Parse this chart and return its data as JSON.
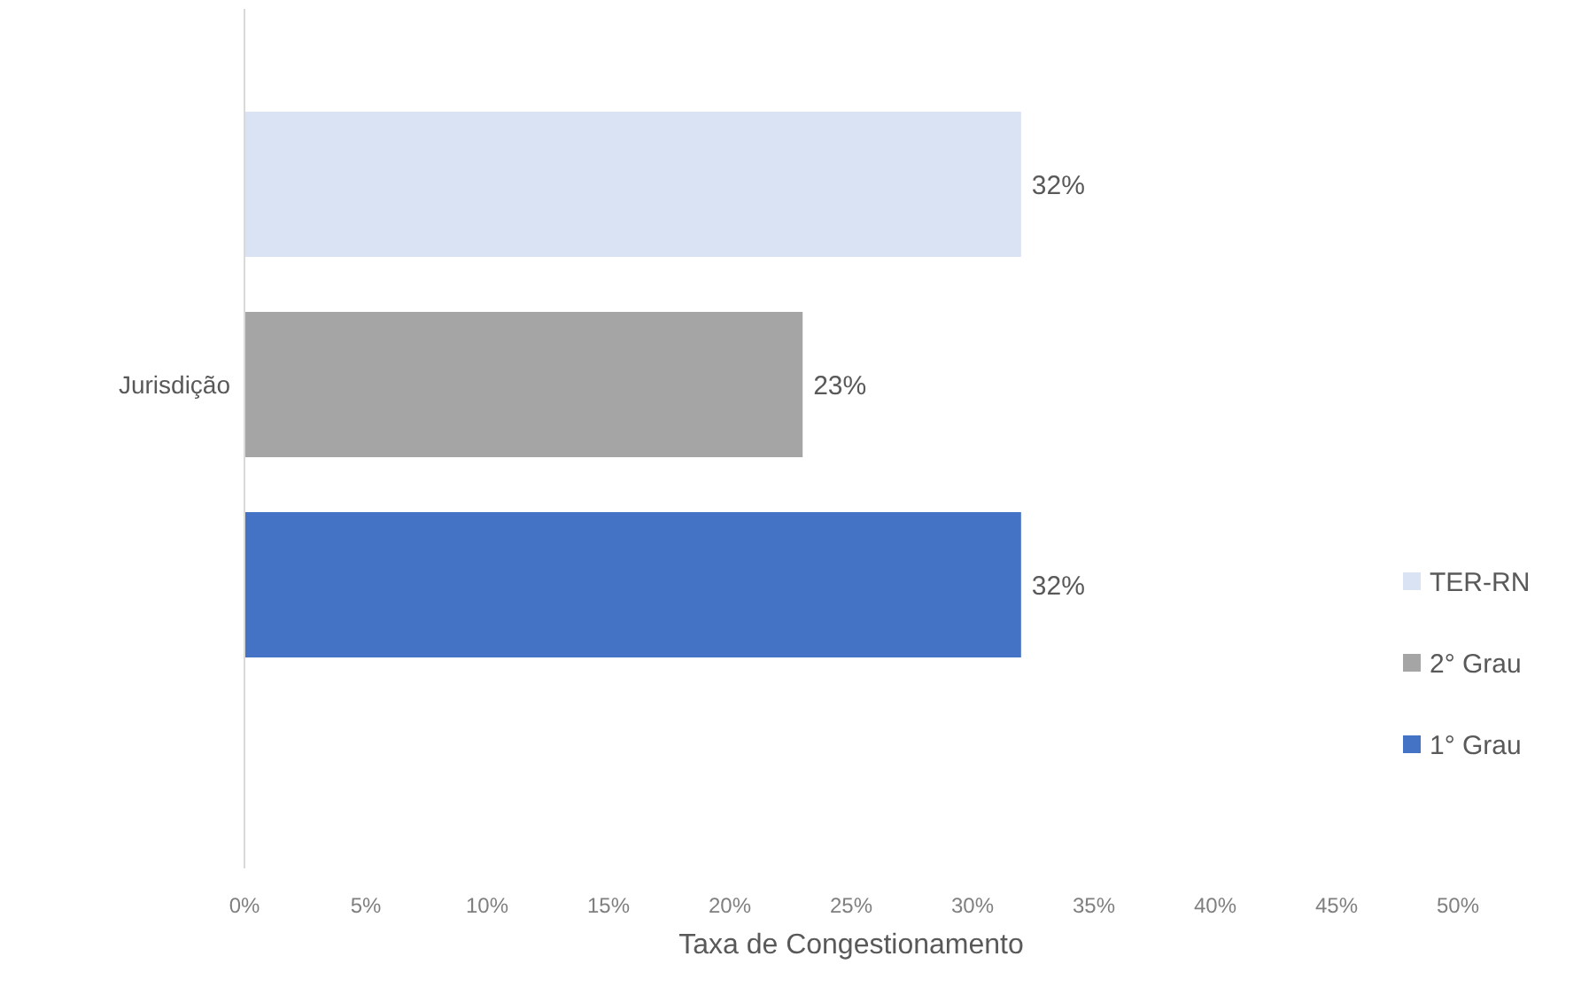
{
  "chart_data": {
    "type": "bar",
    "orientation": "horizontal",
    "xlabel": "Taxa de Congestionamento",
    "categories": [
      "Jurisdição"
    ],
    "series": [
      {
        "name": "1° Grau",
        "color": "#4472c4",
        "values": [
          32
        ],
        "value_labels": [
          "32%"
        ]
      },
      {
        "name": "2° Grau",
        "color": "#a5a5a5",
        "values": [
          23
        ],
        "value_labels": [
          "23%"
        ]
      },
      {
        "name": "TER-RN",
        "color": "#dae3f3",
        "values": [
          32
        ],
        "value_labels": [
          "32%"
        ]
      }
    ],
    "xlim": [
      0,
      50
    ],
    "xticks": [
      {
        "value": 0,
        "label": "0%"
      },
      {
        "value": 5,
        "label": "5%"
      },
      {
        "value": 10,
        "label": "10%"
      },
      {
        "value": 15,
        "label": "15%"
      },
      {
        "value": 20,
        "label": "20%"
      },
      {
        "value": 25,
        "label": "25%"
      },
      {
        "value": 30,
        "label": "30%"
      },
      {
        "value": 35,
        "label": "35%"
      },
      {
        "value": 40,
        "label": "40%"
      },
      {
        "value": 45,
        "label": "45%"
      },
      {
        "value": 50,
        "label": "50%"
      }
    ],
    "grid": false,
    "legend": "right"
  }
}
